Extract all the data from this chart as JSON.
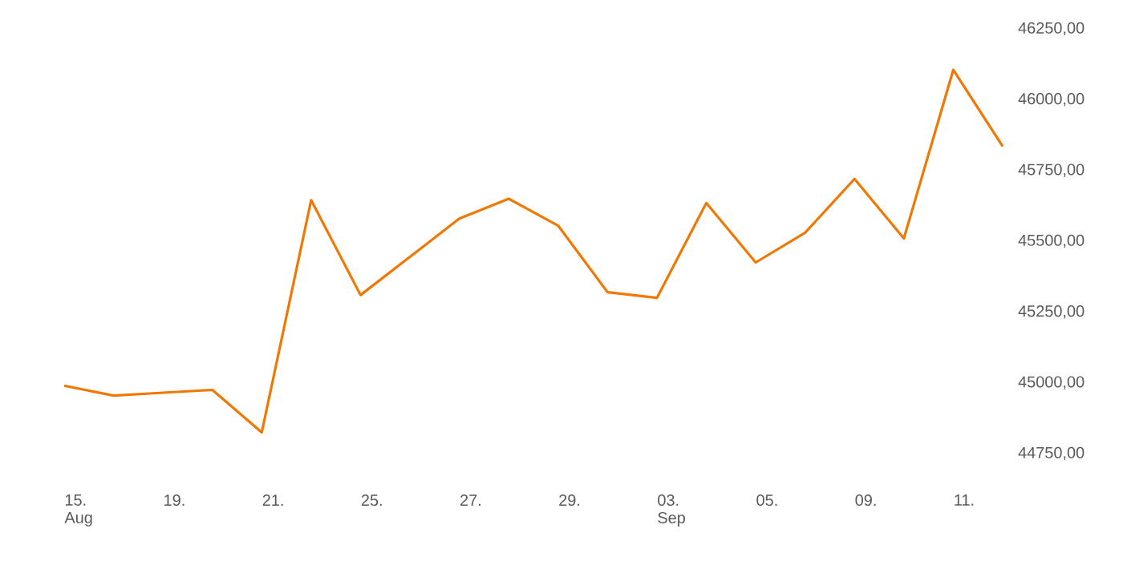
{
  "chart_data": {
    "type": "line",
    "categories": [
      "15.",
      null,
      "19.",
      null,
      "21.",
      null,
      "25.",
      null,
      "27.",
      null,
      "29.",
      null,
      "03.",
      null,
      "05.",
      null,
      "09.",
      null,
      "11.",
      null
    ],
    "series": [
      {
        "color": "#f07800",
        "values": [
          44990,
          44955,
          44965,
          44975,
          44825,
          45645,
          45310,
          45445,
          45580,
          45650,
          45555,
          45320,
          45300,
          45635,
          45425,
          45530,
          45720,
          45510,
          46105,
          45835
        ]
      }
    ],
    "ylim": [
      44750,
      46250
    ],
    "yticks": [
      {
        "value": 44750,
        "label": "44750,00"
      },
      {
        "value": 45000,
        "label": "45000,00"
      },
      {
        "value": 45250,
        "label": "45250,00"
      },
      {
        "value": 45500,
        "label": "45500,00"
      },
      {
        "value": 45750,
        "label": "45750,00"
      },
      {
        "value": 46000,
        "label": "46000,00"
      },
      {
        "value": 46250,
        "label": "46250,00"
      }
    ],
    "annotations": [
      "Aug",
      "Sep"
    ]
  }
}
